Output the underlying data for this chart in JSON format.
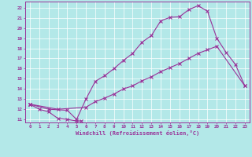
{
  "bg_color": "#b3e8e8",
  "line_color": "#993399",
  "xlim": [
    -0.5,
    23.5
  ],
  "ylim": [
    10.7,
    22.6
  ],
  "xticks": [
    0,
    1,
    2,
    3,
    4,
    5,
    6,
    7,
    8,
    9,
    10,
    11,
    12,
    13,
    14,
    15,
    16,
    17,
    18,
    19,
    20,
    21,
    22,
    23
  ],
  "yticks": [
    11,
    12,
    13,
    14,
    15,
    16,
    17,
    18,
    19,
    20,
    21,
    22
  ],
  "xlabel": "Windchill (Refroidissement éolien,°C)",
  "line1_x": [
    0,
    1,
    2,
    3,
    4,
    5,
    5.5
  ],
  "line1_y": [
    12.5,
    12.0,
    11.75,
    11.1,
    11.0,
    10.85,
    10.85
  ],
  "line2_x": [
    0,
    2,
    4,
    5,
    6,
    7,
    8,
    9,
    10,
    11,
    12,
    13,
    14,
    15,
    16,
    17,
    18,
    19,
    20,
    21,
    22,
    23
  ],
  "line2_y": [
    12.5,
    12.0,
    11.9,
    11.0,
    13.0,
    14.75,
    15.3,
    16.0,
    16.8,
    17.5,
    18.6,
    19.25,
    20.7,
    21.05,
    21.1,
    21.8,
    22.2,
    21.65,
    19.0,
    17.6,
    16.4,
    14.3
  ],
  "line3_x": [
    0,
    3,
    6,
    7,
    8,
    9,
    10,
    11,
    12,
    13,
    14,
    15,
    16,
    17,
    18,
    19,
    20,
    23
  ],
  "line3_y": [
    12.5,
    12.0,
    12.2,
    12.75,
    13.1,
    13.5,
    14.0,
    14.3,
    14.8,
    15.2,
    15.7,
    16.1,
    16.5,
    17.0,
    17.5,
    17.85,
    18.2,
    14.3
  ]
}
